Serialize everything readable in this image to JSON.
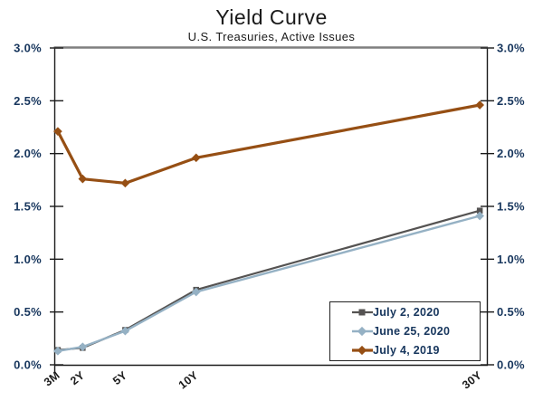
{
  "page": {
    "title": "Yield Curve",
    "subtitle": "U.S. Treasuries, Active Issues"
  },
  "colors": {
    "background": "#ffffff",
    "axis_line": "#1a1a1a",
    "plot_top_border": "#7f7f7f",
    "y_axis_label": "#17365D",
    "x_axis_label": "#1a1a1a",
    "legend_border": "#222222",
    "legend_text": "#17365D",
    "series_july_2_2020": "#555352",
    "series_june_25_2020": "#95B1C4",
    "series_july_4_2019": "#964F14"
  },
  "chart_data": {
    "type": "line",
    "title": "Yield Curve",
    "subtitle": "U.S. Treasuries, Active Issues",
    "categories": [
      "3M",
      "2Y",
      "5Y",
      "10Y",
      "30Y"
    ],
    "x_years": [
      0.25,
      2,
      5,
      10,
      30
    ],
    "x_domain": [
      0,
      30.5
    ],
    "ylim": [
      0.0,
      3.0
    ],
    "y_tick_values": [
      0.0,
      0.5,
      1.0,
      1.5,
      2.0,
      2.5,
      3.0
    ],
    "y_tick_labels": [
      "0.0%",
      "0.5%",
      "1.0%",
      "1.5%",
      "2.0%",
      "2.5%",
      "3.0%"
    ],
    "y_axis_sides": [
      "left",
      "right"
    ],
    "grid": false,
    "legend_position": "inside-bottom-right",
    "series": [
      {
        "name": "July 2, 2020",
        "color": "#555352",
        "marker": "square",
        "line_width": 2.2,
        "values": [
          0.14,
          0.16,
          0.33,
          0.71,
          1.46
        ]
      },
      {
        "name": "June 25, 2020",
        "color": "#95B1C4",
        "marker": "diamond",
        "line_width": 2.4,
        "values": [
          0.13,
          0.17,
          0.32,
          0.69,
          1.41
        ]
      },
      {
        "name": "July 4, 2019",
        "color": "#964F14",
        "marker": "diamond",
        "line_width": 3.2,
        "values": [
          2.21,
          1.76,
          1.72,
          1.96,
          2.46
        ]
      }
    ]
  }
}
